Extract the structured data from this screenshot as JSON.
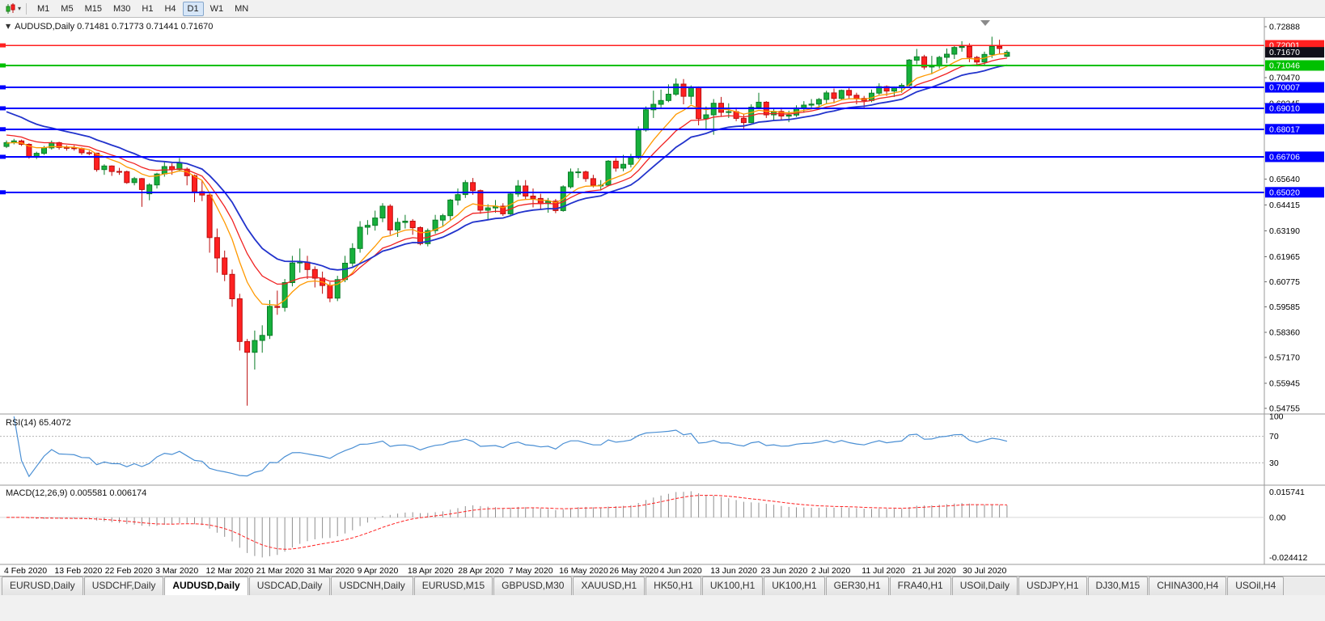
{
  "toolbar": {
    "caret_glyph": "▾",
    "timeframes": [
      "M1",
      "M5",
      "M15",
      "M30",
      "H1",
      "H4",
      "D1",
      "W1",
      "MN"
    ],
    "active_timeframe": "D1"
  },
  "chart": {
    "title_icon_glyph": "▼",
    "title_line": "AUDUSD,Daily 0.71481 0.71773 0.71441 0.71670"
  },
  "indicators": {
    "rsi": {
      "label": "RSI(14) 65.4072",
      "value": 65.4072,
      "period": 14,
      "axis_labels": [
        "100",
        "70",
        "30"
      ],
      "level_values": [
        70,
        30
      ],
      "line_color": "#4a8fd4"
    },
    "macd": {
      "label": "MACD(12,26,9) 0.005581 0.006174",
      "main_value": 0.005581,
      "signal_value": 0.006174,
      "axis_labels": [
        "0.015741",
        "0.00",
        "-0.024412"
      ],
      "histogram_color": "#8f8f8f",
      "signal_color": "#ff2020"
    }
  },
  "tabs": {
    "active_index": 2,
    "items": [
      "EURUSD,Daily",
      "USDCHF,Daily",
      "AUDUSD,Daily",
      "USDCAD,Daily",
      "USDCNH,Daily",
      "EURUSD,M15",
      "GBPUSD,M30",
      "XAUUSD,H1",
      "HK50,H1",
      "UK100,H1",
      "UK100,H1",
      "GER30,H1",
      "FRA40,H1",
      "USOil,Daily",
      "USDJPY,H1",
      "DJ30,M15",
      "CHINA300,H4",
      "USOil,H4"
    ]
  },
  "chart_data": {
    "type": "candlestick",
    "symbol": "AUDUSD",
    "timeframe": "Daily",
    "ohlc_display": {
      "open": 0.71481,
      "high": 0.71773,
      "low": 0.71441,
      "close": 0.7167
    },
    "colors": {
      "background": "#ffffff",
      "up": "#17b03c",
      "up_stroke": "#0a7d27",
      "down": "#ff2121",
      "down_stroke": "#bb0e0e",
      "level_blue": "#0000ff",
      "level_red": "#ff2020",
      "level_green": "#00c000",
      "axis_text": "#000000"
    },
    "y_axis": {
      "ticks": [
        "0.72888",
        "0.70470",
        "0.69245",
        "0.65640",
        "0.64415",
        "0.63190",
        "0.61965",
        "0.60775",
        "0.59585",
        "0.58360",
        "0.57170",
        "0.55945",
        "0.54755"
      ]
    },
    "price_line": {
      "value": 0.7167,
      "label": "0.71670",
      "color": "#10101a"
    },
    "levels": [
      {
        "value": 0.72001,
        "label": "0.72001",
        "color": "#ff2020",
        "width": 1.6
      },
      {
        "value": 0.71046,
        "label": "0.71046",
        "color": "#00c000",
        "width": 2
      },
      {
        "value": 0.70007,
        "label": "0.70007",
        "color": "#0000ff",
        "width": 2
      },
      {
        "value": 0.6901,
        "label": "0.69010",
        "color": "#0000ff",
        "width": 2
      },
      {
        "value": 0.68017,
        "label": "0.68017",
        "color": "#0000ff",
        "width": 2
      },
      {
        "value": 0.66706,
        "label": "0.66706",
        "color": "#0000ff",
        "width": 2
      },
      {
        "value": 0.6502,
        "label": "0.65020",
        "color": "#0000ff",
        "width": 2
      }
    ],
    "x_labels": [
      "4 Feb 2020",
      "13 Feb 2020",
      "22 Feb 2020",
      "3 Mar 2020",
      "12 Mar 2020",
      "21 Mar 2020",
      "31 Mar 2020",
      "9 Apr 2020",
      "18 Apr 2020",
      "28 Apr 2020",
      "7 May 2020",
      "16 May 2020",
      "26 May 2020",
      "4 Jun 2020",
      "13 Jun 2020",
      "23 Jun 2020",
      "2 Jul 2020",
      "11 Jul 2020",
      "21 Jul 2020",
      "30 Jul 2020"
    ],
    "moving_averages": [
      {
        "name": "fast",
        "method": "ema",
        "period": 8,
        "seed": 0.6735,
        "color": "#ff9900",
        "width": 1.3
      },
      {
        "name": "medium",
        "method": "ema",
        "period": 13,
        "seed": 0.678,
        "color": "#f02222",
        "width": 1.3
      },
      {
        "name": "slow",
        "method": "ema",
        "period": 20,
        "seed": 0.69,
        "color": "#2233cc",
        "width": 1.8
      }
    ],
    "rsi": {
      "period": 14
    },
    "macd": {
      "fast": 12,
      "slow": 26,
      "signal": 9,
      "scale": {
        "max": 0.015741,
        "min": -0.024412
      }
    },
    "candles": [
      [
        0.672,
        0.6748,
        0.6712,
        0.6738
      ],
      [
        0.6738,
        0.6756,
        0.673,
        0.6746
      ],
      [
        0.6746,
        0.6752,
        0.6722,
        0.673
      ],
      [
        0.673,
        0.6735,
        0.6662,
        0.667
      ],
      [
        0.667,
        0.6695,
        0.666,
        0.6687
      ],
      [
        0.6687,
        0.6722,
        0.668,
        0.6713
      ],
      [
        0.6713,
        0.6748,
        0.6705,
        0.6738
      ],
      [
        0.6738,
        0.6742,
        0.6705,
        0.6715
      ],
      [
        0.6715,
        0.6725,
        0.67,
        0.6713
      ],
      [
        0.6713,
        0.6725,
        0.67,
        0.671
      ],
      [
        0.671,
        0.6715,
        0.668,
        0.669
      ],
      [
        0.669,
        0.67,
        0.6678,
        0.6688
      ],
      [
        0.6688,
        0.669,
        0.66,
        0.661
      ],
      [
        0.661,
        0.6635,
        0.6585,
        0.6627
      ],
      [
        0.6627,
        0.663,
        0.658,
        0.6601
      ],
      [
        0.6601,
        0.6618,
        0.6585,
        0.66
      ],
      [
        0.66,
        0.6605,
        0.6542,
        0.6548
      ],
      [
        0.6548,
        0.6575,
        0.6535,
        0.6567
      ],
      [
        0.6567,
        0.657,
        0.6433,
        0.6515
      ],
      [
        0.6495,
        0.6545,
        0.6464,
        0.6537
      ],
      [
        0.6537,
        0.6595,
        0.652,
        0.6589
      ],
      [
        0.6589,
        0.6645,
        0.6576,
        0.6624
      ],
      [
        0.6624,
        0.664,
        0.6585,
        0.661
      ],
      [
        0.661,
        0.6665,
        0.66,
        0.664
      ],
      [
        0.6612,
        0.662,
        0.6535,
        0.6581
      ],
      [
        0.6581,
        0.6586,
        0.6455,
        0.6505
      ],
      [
        0.6505,
        0.656,
        0.646,
        0.6489
      ],
      [
        0.6489,
        0.65,
        0.6215,
        0.6287
      ],
      [
        0.6287,
        0.633,
        0.612,
        0.619
      ],
      [
        0.619,
        0.6225,
        0.608,
        0.6112
      ],
      [
        0.6112,
        0.6135,
        0.5958,
        0.5996
      ],
      [
        0.5996,
        0.602,
        0.575,
        0.5793
      ],
      [
        0.5793,
        0.5805,
        0.5488,
        0.5742
      ],
      [
        0.5742,
        0.5845,
        0.566,
        0.5798
      ],
      [
        0.5798,
        0.587,
        0.574,
        0.5822
      ],
      [
        0.5822,
        0.599,
        0.5805,
        0.596
      ],
      [
        0.596,
        0.6035,
        0.592,
        0.5955
      ],
      [
        0.5955,
        0.609,
        0.5935,
        0.6073
      ],
      [
        0.6073,
        0.62,
        0.6055,
        0.6166
      ],
      [
        0.6166,
        0.6235,
        0.612,
        0.617
      ],
      [
        0.617,
        0.62,
        0.609,
        0.6135
      ],
      [
        0.6135,
        0.615,
        0.605,
        0.6094
      ],
      [
        0.6094,
        0.6125,
        0.602,
        0.6059
      ],
      [
        0.6059,
        0.6075,
        0.598,
        0.5999
      ],
      [
        0.5999,
        0.6105,
        0.5985,
        0.6087
      ],
      [
        0.6087,
        0.62,
        0.6075,
        0.6165
      ],
      [
        0.6165,
        0.626,
        0.615,
        0.6235
      ],
      [
        0.6235,
        0.6365,
        0.6215,
        0.6336
      ],
      [
        0.6336,
        0.637,
        0.63,
        0.6345
      ],
      [
        0.6345,
        0.6415,
        0.632,
        0.638
      ],
      [
        0.638,
        0.645,
        0.636,
        0.6436
      ],
      [
        0.6436,
        0.6445,
        0.63,
        0.6323
      ],
      [
        0.6323,
        0.638,
        0.629,
        0.6359
      ],
      [
        0.6359,
        0.6395,
        0.633,
        0.6365
      ],
      [
        0.6365,
        0.6375,
        0.63,
        0.6334
      ],
      [
        0.6334,
        0.634,
        0.625,
        0.6258
      ],
      [
        0.6258,
        0.633,
        0.6245,
        0.632
      ],
      [
        0.632,
        0.6395,
        0.6305,
        0.637
      ],
      [
        0.637,
        0.64,
        0.634,
        0.6391
      ],
      [
        0.6391,
        0.647,
        0.637,
        0.6465
      ],
      [
        0.6465,
        0.652,
        0.644,
        0.6491
      ],
      [
        0.6491,
        0.656,
        0.6475,
        0.6548
      ],
      [
        0.6548,
        0.657,
        0.649,
        0.651
      ],
      [
        0.651,
        0.6515,
        0.64,
        0.6417
      ],
      [
        0.6417,
        0.6445,
        0.6372,
        0.6428
      ],
      [
        0.6428,
        0.6465,
        0.6405,
        0.6436
      ],
      [
        0.6436,
        0.645,
        0.639,
        0.64
      ],
      [
        0.64,
        0.65,
        0.639,
        0.6494
      ],
      [
        0.6494,
        0.656,
        0.648,
        0.6532
      ],
      [
        0.6532,
        0.656,
        0.647,
        0.6484
      ],
      [
        0.6484,
        0.652,
        0.643,
        0.6473
      ],
      [
        0.6473,
        0.6495,
        0.642,
        0.6448
      ],
      [
        0.6448,
        0.6475,
        0.6405,
        0.646
      ],
      [
        0.646,
        0.647,
        0.6403,
        0.6415
      ],
      [
        0.6415,
        0.6535,
        0.641,
        0.6528
      ],
      [
        0.6528,
        0.6615,
        0.652,
        0.6598
      ],
      [
        0.6598,
        0.6617,
        0.657,
        0.6599
      ],
      [
        0.6599,
        0.6605,
        0.6552,
        0.6567
      ],
      [
        0.6567,
        0.6585,
        0.6525,
        0.6536
      ],
      [
        0.6536,
        0.656,
        0.651,
        0.6536
      ],
      [
        0.6536,
        0.6655,
        0.653,
        0.665
      ],
      [
        0.665,
        0.6665,
        0.66,
        0.6617
      ],
      [
        0.6617,
        0.668,
        0.6602,
        0.6635
      ],
      [
        0.6635,
        0.6685,
        0.662,
        0.6667
      ],
      [
        0.6667,
        0.6815,
        0.666,
        0.6798
      ],
      [
        0.6798,
        0.691,
        0.679,
        0.6894
      ],
      [
        0.6894,
        0.6985,
        0.6855,
        0.692
      ],
      [
        0.692,
        0.699,
        0.6905,
        0.6938
      ],
      [
        0.6938,
        0.7015,
        0.693,
        0.6968
      ],
      [
        0.6968,
        0.7043,
        0.696,
        0.7016
      ],
      [
        0.7016,
        0.704,
        0.692,
        0.6958
      ],
      [
        0.6958,
        0.701,
        0.692,
        0.7001
      ],
      [
        0.7001,
        0.7005,
        0.682,
        0.6852
      ],
      [
        0.6852,
        0.691,
        0.68,
        0.687
      ],
      [
        0.687,
        0.6945,
        0.6775,
        0.6925
      ],
      [
        0.6925,
        0.6955,
        0.686,
        0.6882
      ],
      [
        0.6882,
        0.6925,
        0.6855,
        0.6885
      ],
      [
        0.6885,
        0.6905,
        0.684,
        0.6853
      ],
      [
        0.6853,
        0.6875,
        0.6805,
        0.6833
      ],
      [
        0.6833,
        0.692,
        0.683,
        0.6906
      ],
      [
        0.6906,
        0.6975,
        0.69,
        0.693
      ],
      [
        0.693,
        0.6935,
        0.6855,
        0.687
      ],
      [
        0.687,
        0.69,
        0.6842,
        0.6886
      ],
      [
        0.6886,
        0.6905,
        0.6845,
        0.6864
      ],
      [
        0.6864,
        0.689,
        0.6835,
        0.6869
      ],
      [
        0.6869,
        0.6915,
        0.686,
        0.6903
      ],
      [
        0.6903,
        0.6935,
        0.688,
        0.6916
      ],
      [
        0.6916,
        0.6945,
        0.69,
        0.6921
      ],
      [
        0.6921,
        0.695,
        0.6905,
        0.6943
      ],
      [
        0.6943,
        0.6985,
        0.692,
        0.6974
      ],
      [
        0.6974,
        0.6995,
        0.6925,
        0.6948
      ],
      [
        0.6948,
        0.699,
        0.694,
        0.6986
      ],
      [
        0.6986,
        0.7,
        0.6945,
        0.6963
      ],
      [
        0.6963,
        0.6975,
        0.692,
        0.6948
      ],
      [
        0.6948,
        0.696,
        0.6905,
        0.6938
      ],
      [
        0.6938,
        0.699,
        0.693,
        0.6973
      ],
      [
        0.6973,
        0.702,
        0.6965,
        0.7004
      ],
      [
        0.7004,
        0.701,
        0.696,
        0.6983
      ],
      [
        0.6983,
        0.7005,
        0.6955,
        0.6998
      ],
      [
        0.6998,
        0.702,
        0.6975,
        0.701
      ],
      [
        0.701,
        0.7135,
        0.7,
        0.713
      ],
      [
        0.713,
        0.7183,
        0.711,
        0.7146
      ],
      [
        0.7146,
        0.7155,
        0.7085,
        0.7097
      ],
      [
        0.7097,
        0.715,
        0.7063,
        0.7102
      ],
      [
        0.7102,
        0.715,
        0.709,
        0.7143
      ],
      [
        0.7143,
        0.7185,
        0.7115,
        0.7158
      ],
      [
        0.7158,
        0.72,
        0.7135,
        0.719
      ],
      [
        0.719,
        0.722,
        0.717,
        0.7195
      ],
      [
        0.7195,
        0.721,
        0.712,
        0.7143
      ],
      [
        0.7143,
        0.715,
        0.71,
        0.7121
      ],
      [
        0.7121,
        0.717,
        0.7105,
        0.7157
      ],
      [
        0.7157,
        0.7241,
        0.714,
        0.7195
      ],
      [
        0.7195,
        0.7227,
        0.7158,
        0.7185
      ],
      [
        0.71481,
        0.71773,
        0.71441,
        0.7167
      ]
    ]
  }
}
